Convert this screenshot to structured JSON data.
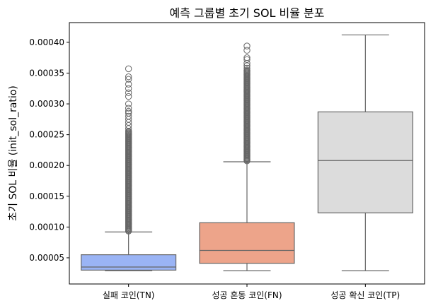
{
  "chart_data": {
    "type": "box",
    "title": "예측 그룹별 초기 SOL 비율 분포",
    "xlabel": "",
    "ylabel": "초기 SOL 비율 (init_sol_ratio)",
    "ylim": [
      7.5e-06,
      0.000432
    ],
    "yticks": [
      "0.00005",
      "0.00010",
      "0.00015",
      "0.00020",
      "0.00025",
      "0.00030",
      "0.00035",
      "0.00040"
    ],
    "yticks_values": [
      5e-05,
      0.0001,
      0.00015,
      0.0002,
      0.00025,
      0.0003,
      0.00035,
      0.0004
    ],
    "grid": false,
    "categories": [
      "실패 코인(TN)",
      "성공 혼동 코인(FN)",
      "성공 확신 코인(TP)"
    ],
    "boxes": [
      {
        "category": "실패 코인(TN)",
        "color": "#9ab4f5",
        "whisker_low": 2.9e-05,
        "q1": 3e-05,
        "median": 3.5e-05,
        "q3": 5.5e-05,
        "whisker_high": 9.2e-05,
        "outlier_range": [
          9.2e-05,
          0.000256
        ],
        "outliers": [
          0.00026,
          0.000265,
          0.00027,
          0.000275,
          0.00028,
          0.000285,
          0.000288,
          0.000293,
          0.0003,
          0.000312,
          0.000318,
          0.000325,
          0.000332,
          0.00034,
          0.000344,
          0.000357
        ]
      },
      {
        "category": "성공 혼동 코인(FN)",
        "color": "#eda48a",
        "whisker_low": 2.9e-05,
        "q1": 4.1e-05,
        "median": 6.2e-05,
        "q3": 0.000107,
        "whisker_high": 0.000206,
        "outlier_range": [
          0.000206,
          0.000355
        ],
        "outliers": [
          0.000358,
          0.000362,
          0.000366,
          0.000372,
          0.000375,
          0.000387,
          0.000394
        ]
      },
      {
        "category": "성공 확신 코인(TP)",
        "color": "#dcdcdc",
        "whisker_low": 2.9e-05,
        "q1": 0.000123,
        "median": 0.000208,
        "q3": 0.000287,
        "whisker_high": 0.000412,
        "outlier_range": null,
        "outliers": []
      }
    ]
  }
}
